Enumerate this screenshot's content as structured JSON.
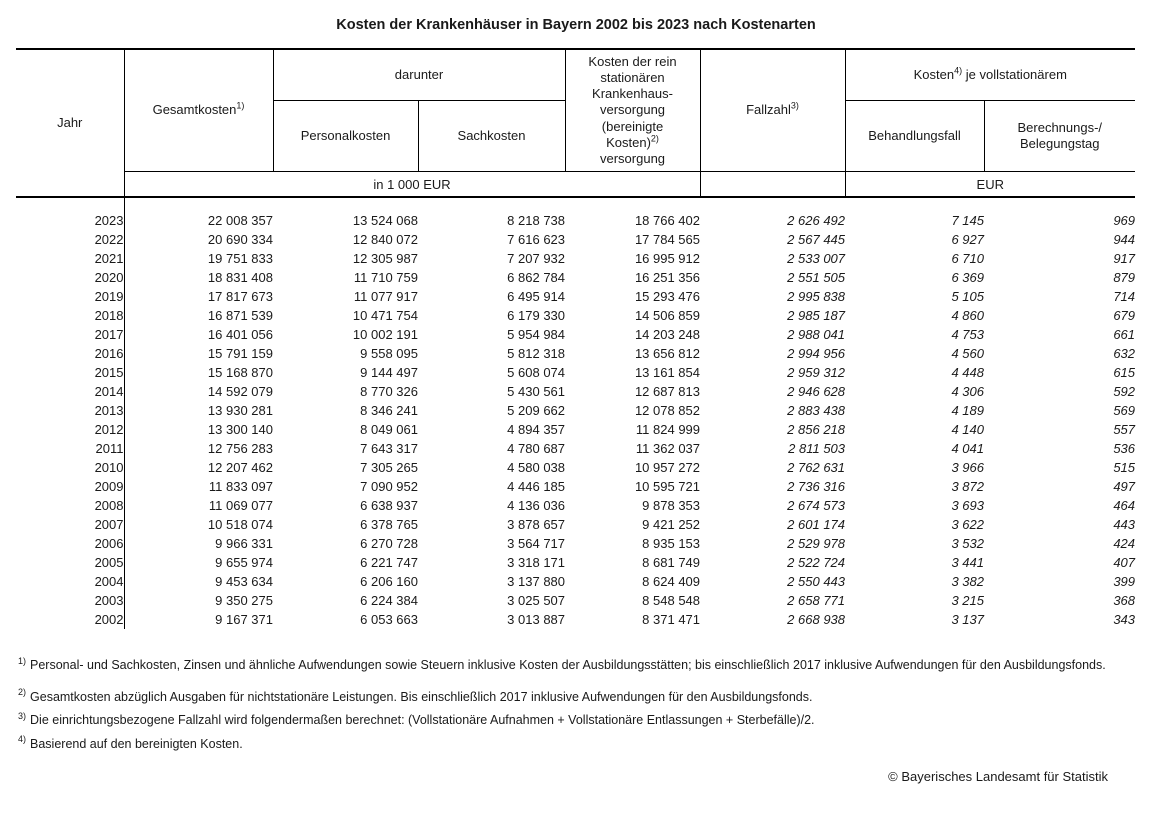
{
  "colors": {
    "text": "#1a1a1a",
    "border": "#000000"
  },
  "title": "Kosten der Krankenhäuser in Bayern 2002 bis 2023 nach Kostenarten",
  "table": {
    "header": {
      "jahr": "Jahr",
      "gesamtkosten": {
        "text": "Gesamtkosten",
        "sup": "1)"
      },
      "darunter": "darunter",
      "personalkosten": "Personalkosten",
      "sachkosten": "Sachkosten",
      "bereinigte": {
        "text": "Kosten der rein\nstationären\nKrankenhaus-\nversorgung\n(bereinigte\nKosten)",
        "sup": "2)",
        "text2": "\nversorgung"
      },
      "fallzahl": {
        "text": "Fallzahl",
        "sup": "3)"
      },
      "kosten_je": {
        "text": "Kosten",
        "sup": "4)",
        "text2": " je vollstationärem"
      },
      "behandlungsfall": "Behandlungsfall",
      "berechnungstag": "Berechnungs-/\nBelegungstag",
      "unit_left": "in 1 000 EUR",
      "unit_right": "EUR"
    },
    "rows": [
      [
        "2023",
        "22 008 357",
        "13 524 068",
        "8 218 738",
        "18 766 402",
        "2 626 492",
        "7 145",
        "969"
      ],
      [
        "2022",
        "20 690 334",
        "12 840 072",
        "7 616 623",
        "17 784 565",
        "2 567 445",
        "6 927",
        "944"
      ],
      [
        "2021",
        "19 751 833",
        "12 305 987",
        "7 207 932",
        "16 995 912",
        "2 533 007",
        "6 710",
        "917"
      ],
      [
        "2020",
        "18 831 408",
        "11 710 759",
        "6 862 784",
        "16 251 356",
        "2 551 505",
        "6 369",
        "879"
      ],
      [
        "2019",
        "17 817 673",
        "11 077 917",
        "6 495 914",
        "15 293 476",
        "2 995 838",
        "5 105",
        "714"
      ],
      [
        "2018",
        "16 871 539",
        "10 471 754",
        "6 179 330",
        "14 506 859",
        "2 985 187",
        "4 860",
        "679"
      ],
      [
        "2017",
        "16 401 056",
        "10 002 191",
        "5 954 984",
        "14 203 248",
        "2 988 041",
        "4 753",
        "661"
      ],
      [
        "2016",
        "15 791 159",
        "9 558 095",
        "5 812 318",
        "13 656 812",
        "2 994 956",
        "4 560",
        "632"
      ],
      [
        "2015",
        "15 168 870",
        "9 144 497",
        "5 608 074",
        "13 161 854",
        "2 959 312",
        "4 448",
        "615"
      ],
      [
        "2014",
        "14 592 079",
        "8 770 326",
        "5 430 561",
        "12 687 813",
        "2 946 628",
        "4 306",
        "592"
      ],
      [
        "2013",
        "13 930 281",
        "8 346 241",
        "5 209 662",
        "12 078 852",
        "2 883 438",
        "4 189",
        "569"
      ],
      [
        "2012",
        "13 300 140",
        "8 049 061",
        "4 894 357",
        "11 824 999",
        "2 856 218",
        "4 140",
        "557"
      ],
      [
        "2011",
        "12 756 283",
        "7 643 317",
        "4 780 687",
        "11 362 037",
        "2 811 503",
        "4 041",
        "536"
      ],
      [
        "2010",
        "12 207 462",
        "7 305 265",
        "4 580 038",
        "10 957 272",
        "2 762 631",
        "3 966",
        "515"
      ],
      [
        "2009",
        "11 833 097",
        "7 090 952",
        "4 446 185",
        "10 595 721",
        "2 736 316",
        "3 872",
        "497"
      ],
      [
        "2008",
        "11 069 077",
        "6 638 937",
        "4 136 036",
        "9 878 353",
        "2 674 573",
        "3 693",
        "464"
      ],
      [
        "2007",
        "10 518 074",
        "6 378 765",
        "3 878 657",
        "9 421 252",
        "2 601 174",
        "3 622",
        "443"
      ],
      [
        "2006",
        "9 966 331",
        "6 270 728",
        "3 564 717",
        "8 935 153",
        "2 529 978",
        "3 532",
        "424"
      ],
      [
        "2005",
        "9 655 974",
        "6 221 747",
        "3 318 171",
        "8 681 749",
        "2 522 724",
        "3 441",
        "407"
      ],
      [
        "2004",
        "9 453 634",
        "6 206 160",
        "3 137 880",
        "8 624 409",
        "2 550 443",
        "3 382",
        "399"
      ],
      [
        "2003",
        "9 350 275",
        "6 224 384",
        "3 025 507",
        "8 548 548",
        "2 658 771",
        "3 215",
        "368"
      ],
      [
        "2002",
        "9 167 371",
        "6 053 663",
        "3 013 887",
        "8 371 471",
        "2 668 938",
        "3 137",
        "343"
      ]
    ]
  },
  "footnotes": [
    {
      "marker": "1)",
      "text": "Personal- und Sachkosten, Zinsen und ähnliche Aufwendungen sowie Steuern inklusive Kosten der Ausbildungsstätten; bis einschließlich 2017 inklusive Aufwendungen für den Ausbildungsfonds."
    },
    {
      "marker": "2)",
      "text": "Gesamtkosten abzüglich Ausgaben für nichtstationäre Leistungen. Bis einschließlich 2017 inklusive Aufwendungen für den Ausbildungsfonds."
    },
    {
      "marker": "3)",
      "text": "Die einrichtungsbezogene Fallzahl wird folgendermaßen berechnet: (Vollstationäre Aufnahmen + Vollstationäre Entlassungen + Sterbefälle)/2."
    },
    {
      "marker": "4)",
      "text": "Basierend auf den bereinigten Kosten."
    }
  ],
  "copyright": "© Bayerisches Landesamt für Statistik"
}
